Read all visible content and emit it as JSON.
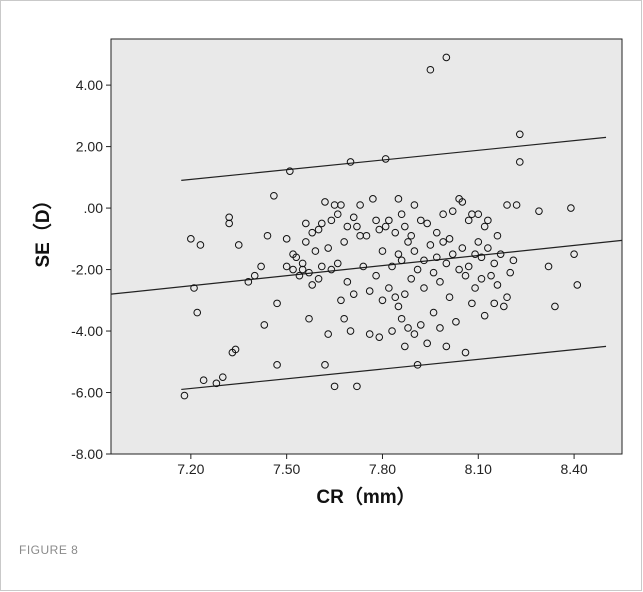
{
  "figure": {
    "caption": "FIGURE 8"
  },
  "colors": {
    "plot_background": "#e9e9e9",
    "marker": "#111111",
    "line": "#222222",
    "axis": "#222222"
  },
  "chart_data": {
    "type": "scatter",
    "title": "",
    "xlabel": "CR（mm）",
    "ylabel": "SE（D）",
    "xlim": [
      6.95,
      8.55
    ],
    "ylim": [
      -8.0,
      5.5
    ],
    "xticks": [
      7.2,
      7.5,
      7.8,
      8.1,
      8.4
    ],
    "xtick_labels": [
      "7.20",
      "7.50",
      "7.80",
      "8.10",
      "8.40"
    ],
    "yticks": [
      4,
      2,
      0,
      -2,
      -4,
      -6,
      -8
    ],
    "ytick_labels": [
      "4.00",
      "2.00",
      ".00",
      "-2.00",
      "-4.00",
      "-6.00",
      "-8.00"
    ],
    "grid": false,
    "marker": "open-circle",
    "fit_line": {
      "x": [
        6.95,
        8.55
      ],
      "y": [
        -2.8,
        -1.05
      ]
    },
    "prediction_band_upper": {
      "x": [
        7.17,
        8.5
      ],
      "y": [
        0.9,
        2.3
      ]
    },
    "prediction_band_lower": {
      "x": [
        7.17,
        8.5
      ],
      "y": [
        -5.9,
        -4.5
      ]
    },
    "points": [
      [
        7.18,
        -6.1
      ],
      [
        7.2,
        -1.0
      ],
      [
        7.21,
        -2.6
      ],
      [
        7.22,
        -3.4
      ],
      [
        7.23,
        -1.2
      ],
      [
        7.24,
        -5.6
      ],
      [
        7.28,
        -5.7
      ],
      [
        7.3,
        -5.5
      ],
      [
        7.32,
        -0.3
      ],
      [
        7.32,
        -0.5
      ],
      [
        7.33,
        -4.7
      ],
      [
        7.34,
        -4.6
      ],
      [
        7.35,
        -1.2
      ],
      [
        7.38,
        -2.4
      ],
      [
        7.4,
        -2.2
      ],
      [
        7.42,
        -1.9
      ],
      [
        7.43,
        -3.8
      ],
      [
        7.44,
        -0.9
      ],
      [
        7.46,
        0.4
      ],
      [
        7.47,
        -3.1
      ],
      [
        7.47,
        -5.1
      ],
      [
        7.5,
        -1.9
      ],
      [
        7.5,
        -1.0
      ],
      [
        7.51,
        1.2
      ],
      [
        7.52,
        -1.5
      ],
      [
        7.52,
        -2.0
      ],
      [
        7.53,
        -1.6
      ],
      [
        7.54,
        -2.2
      ],
      [
        7.55,
        -1.8
      ],
      [
        7.55,
        -2.0
      ],
      [
        7.56,
        -0.5
      ],
      [
        7.56,
        -1.1
      ],
      [
        7.57,
        -2.1
      ],
      [
        7.57,
        -3.6
      ],
      [
        7.58,
        -0.8
      ],
      [
        7.58,
        -2.5
      ],
      [
        7.59,
        -1.4
      ],
      [
        7.6,
        -0.7
      ],
      [
        7.6,
        -2.3
      ],
      [
        7.61,
        -0.5
      ],
      [
        7.61,
        -1.9
      ],
      [
        7.62,
        -5.1
      ],
      [
        7.62,
        0.2
      ],
      [
        7.63,
        -4.1
      ],
      [
        7.63,
        -1.3
      ],
      [
        7.64,
        -0.4
      ],
      [
        7.64,
        -2.0
      ],
      [
        7.65,
        -5.8
      ],
      [
        7.65,
        0.1
      ],
      [
        7.66,
        -0.2
      ],
      [
        7.66,
        -1.8
      ],
      [
        7.67,
        0.1
      ],
      [
        7.67,
        -3.0
      ],
      [
        7.68,
        -1.1
      ],
      [
        7.68,
        -3.6
      ],
      [
        7.69,
        -0.6
      ],
      [
        7.69,
        -2.4
      ],
      [
        7.7,
        1.5
      ],
      [
        7.7,
        -4.0
      ],
      [
        7.71,
        -0.3
      ],
      [
        7.71,
        -2.8
      ],
      [
        7.72,
        -0.6
      ],
      [
        7.72,
        -5.8
      ],
      [
        7.73,
        -0.9
      ],
      [
        7.73,
        0.1
      ],
      [
        7.74,
        -1.9
      ],
      [
        7.75,
        -0.9
      ],
      [
        7.76,
        -4.1
      ],
      [
        7.76,
        -2.7
      ],
      [
        7.77,
        0.3
      ],
      [
        7.78,
        -0.4
      ],
      [
        7.78,
        -2.2
      ],
      [
        7.79,
        -0.7
      ],
      [
        7.79,
        -4.2
      ],
      [
        7.8,
        -1.4
      ],
      [
        7.8,
        -3.0
      ],
      [
        7.81,
        -0.6
      ],
      [
        7.81,
        1.6
      ],
      [
        7.82,
        -0.4
      ],
      [
        7.82,
        -2.6
      ],
      [
        7.83,
        -1.9
      ],
      [
        7.83,
        -4.0
      ],
      [
        7.84,
        -0.8
      ],
      [
        7.84,
        -2.9
      ],
      [
        7.85,
        0.3
      ],
      [
        7.85,
        -1.5
      ],
      [
        7.85,
        -3.2
      ],
      [
        7.86,
        -0.2
      ],
      [
        7.86,
        -1.7
      ],
      [
        7.86,
        -3.6
      ],
      [
        7.87,
        -0.6
      ],
      [
        7.87,
        -2.8
      ],
      [
        7.87,
        -4.5
      ],
      [
        7.88,
        -1.1
      ],
      [
        7.88,
        -3.9
      ],
      [
        7.89,
        -0.9
      ],
      [
        7.89,
        -2.3
      ],
      [
        7.9,
        0.1
      ],
      [
        7.9,
        -1.4
      ],
      [
        7.9,
        -4.1
      ],
      [
        7.91,
        -2.0
      ],
      [
        7.91,
        -5.1
      ],
      [
        7.92,
        -0.4
      ],
      [
        7.92,
        -3.8
      ],
      [
        7.93,
        -1.7
      ],
      [
        7.93,
        -2.6
      ],
      [
        7.94,
        -0.5
      ],
      [
        7.94,
        -4.4
      ],
      [
        7.95,
        4.5
      ],
      [
        7.95,
        -1.2
      ],
      [
        7.96,
        -2.1
      ],
      [
        7.96,
        -3.4
      ],
      [
        7.97,
        -0.8
      ],
      [
        7.97,
        -1.6
      ],
      [
        7.98,
        -2.4
      ],
      [
        7.98,
        -3.9
      ],
      [
        7.99,
        -1.1
      ],
      [
        7.99,
        -0.2
      ],
      [
        8.0,
        4.9
      ],
      [
        8.0,
        -1.8
      ],
      [
        8.0,
        -4.5
      ],
      [
        8.01,
        -1.0
      ],
      [
        8.01,
        -2.9
      ],
      [
        8.02,
        -0.1
      ],
      [
        8.02,
        -1.5
      ],
      [
        8.03,
        -3.7
      ],
      [
        8.04,
        0.3
      ],
      [
        8.04,
        -2.0
      ],
      [
        8.05,
        0.2
      ],
      [
        8.05,
        -1.3
      ],
      [
        8.06,
        -2.2
      ],
      [
        8.06,
        -4.7
      ],
      [
        8.07,
        -0.4
      ],
      [
        8.07,
        -1.9
      ],
      [
        8.08,
        -0.2
      ],
      [
        8.08,
        -3.1
      ],
      [
        8.09,
        -1.5
      ],
      [
        8.09,
        -2.6
      ],
      [
        8.1,
        -0.2
      ],
      [
        8.1,
        -1.1
      ],
      [
        8.11,
        -2.3
      ],
      [
        8.11,
        -1.6
      ],
      [
        8.12,
        -0.6
      ],
      [
        8.12,
        -3.5
      ],
      [
        8.13,
        -1.3
      ],
      [
        8.13,
        -0.4
      ],
      [
        8.14,
        -2.2
      ],
      [
        8.15,
        -1.8
      ],
      [
        8.15,
        -3.1
      ],
      [
        8.16,
        -0.9
      ],
      [
        8.16,
        -2.5
      ],
      [
        8.17,
        -1.5
      ],
      [
        8.18,
        -3.2
      ],
      [
        8.19,
        0.1
      ],
      [
        8.19,
        -2.9
      ],
      [
        8.2,
        -2.1
      ],
      [
        8.21,
        -1.7
      ],
      [
        8.22,
        0.1
      ],
      [
        8.23,
        1.5
      ],
      [
        8.23,
        2.4
      ],
      [
        8.29,
        -0.1
      ],
      [
        8.32,
        -1.9
      ],
      [
        8.34,
        -3.2
      ],
      [
        8.39,
        0.0
      ],
      [
        8.4,
        -1.5
      ],
      [
        8.41,
        -2.5
      ]
    ]
  }
}
